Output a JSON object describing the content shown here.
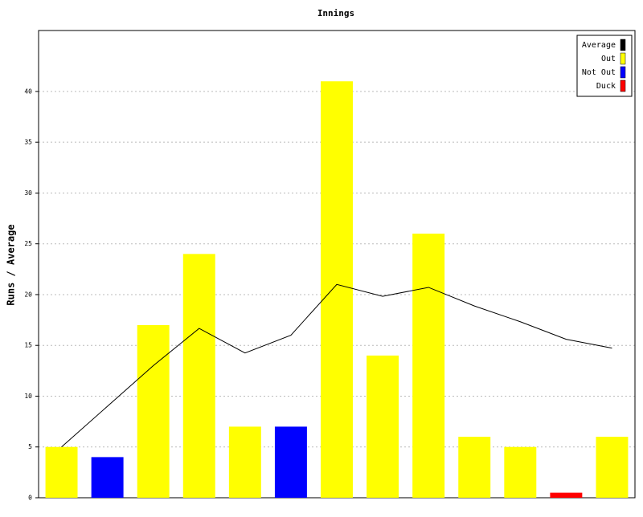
{
  "chart_data": {
    "type": "bar",
    "title": "Innings",
    "y_label": "Runs / Average",
    "ylim": [
      0,
      46
    ],
    "yticks": [
      0,
      5,
      10,
      15,
      20,
      25,
      30,
      35,
      40
    ],
    "grid": true,
    "legend": "top-right",
    "series": [
      {
        "name": "Average",
        "color": "#000000",
        "type": "line",
        "values": [
          5,
          9,
          13,
          16.67,
          14.25,
          16,
          21,
          19.83,
          20.71,
          18.88,
          17.33,
          15.6,
          14.73
        ]
      },
      {
        "name": "Out",
        "color": "#ffff00",
        "values": [
          5,
          null,
          17,
          24,
          7,
          null,
          41,
          14,
          26,
          6,
          5,
          null,
          6
        ]
      },
      {
        "name": "Not Out",
        "color": "#0000ff",
        "values": [
          null,
          4,
          null,
          null,
          null,
          7,
          null,
          null,
          null,
          null,
          null,
          null,
          null
        ]
      },
      {
        "name": "Duck",
        "color": "#ff0000",
        "values": [
          null,
          null,
          null,
          null,
          null,
          null,
          null,
          null,
          null,
          null,
          null,
          0.5,
          null
        ]
      }
    ]
  }
}
